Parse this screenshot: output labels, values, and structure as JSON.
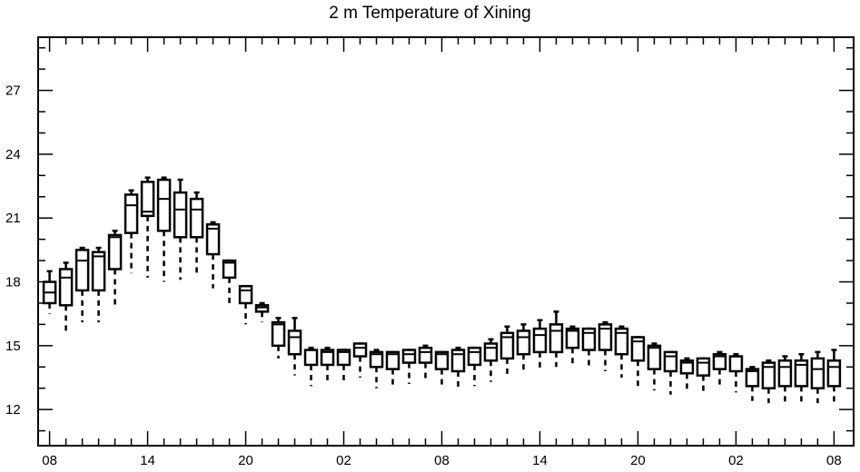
{
  "chart_data": {
    "type": "boxplot",
    "title": "2 m Temperature of Xining",
    "xlabel": "",
    "ylabel": "",
    "ylim": [
      10.3,
      29.5
    ],
    "yticks": [
      12,
      15,
      18,
      21,
      24,
      27
    ],
    "x_tick_labels": [
      "08",
      "14",
      "20",
      "02",
      "08",
      "14",
      "20",
      "02",
      "08"
    ],
    "x_tick_hours": [
      0,
      6,
      12,
      18,
      24,
      30,
      36,
      42,
      48
    ],
    "x_range_hours": [
      -0.7,
      49.2
    ],
    "grid": false,
    "legend": "none",
    "boxes": [
      {
        "hour": 0,
        "min": 16.5,
        "q1": 17.0,
        "median": 17.5,
        "q3": 18.0,
        "max": 18.5
      },
      {
        "hour": 1,
        "min": 15.6,
        "q1": 16.9,
        "median": 18.2,
        "q3": 18.6,
        "max": 18.9
      },
      {
        "hour": 2,
        "min": 16.1,
        "q1": 17.6,
        "median": 19.0,
        "q3": 19.5,
        "max": 19.6
      },
      {
        "hour": 3,
        "min": 16.1,
        "q1": 17.6,
        "median": 19.2,
        "q3": 19.4,
        "max": 19.6
      },
      {
        "hour": 4,
        "min": 16.8,
        "q1": 18.6,
        "median": 20.1,
        "q3": 20.2,
        "max": 20.4
      },
      {
        "hour": 5,
        "min": 18.4,
        "q1": 20.3,
        "median": 21.6,
        "q3": 22.1,
        "max": 22.3
      },
      {
        "hour": 6,
        "min": 18.2,
        "q1": 21.1,
        "median": 21.3,
        "q3": 22.7,
        "max": 22.9
      },
      {
        "hour": 7,
        "min": 18.0,
        "q1": 20.4,
        "median": 21.9,
        "q3": 22.8,
        "max": 22.9
      },
      {
        "hour": 8,
        "min": 18.1,
        "q1": 20.1,
        "median": 21.4,
        "q3": 22.2,
        "max": 22.8
      },
      {
        "hour": 9,
        "min": 18.3,
        "q1": 20.1,
        "median": 21.4,
        "q3": 21.9,
        "max": 22.2
      },
      {
        "hour": 10,
        "min": 17.7,
        "q1": 19.3,
        "median": 20.5,
        "q3": 20.7,
        "max": 20.8
      },
      {
        "hour": 11,
        "min": 17.0,
        "q1": 18.2,
        "median": 18.9,
        "q3": 19.0,
        "max": 19.0
      },
      {
        "hour": 12,
        "min": 16.0,
        "q1": 17.0,
        "median": 17.6,
        "q3": 17.8,
        "max": 17.8
      },
      {
        "hour": 13,
        "min": 16.1,
        "q1": 16.6,
        "median": 16.8,
        "q3": 16.9,
        "max": 17.0
      },
      {
        "hour": 14,
        "min": 14.4,
        "q1": 15.0,
        "median": 16.0,
        "q3": 16.1,
        "max": 16.3
      },
      {
        "hour": 15,
        "min": 13.6,
        "q1": 14.6,
        "median": 15.4,
        "q3": 15.7,
        "max": 16.3
      },
      {
        "hour": 16,
        "min": 13.1,
        "q1": 14.1,
        "median": 14.8,
        "q3": 14.8,
        "max": 14.9
      },
      {
        "hour": 17,
        "min": 13.2,
        "q1": 14.1,
        "median": 14.7,
        "q3": 14.8,
        "max": 14.9
      },
      {
        "hour": 18,
        "min": 13.3,
        "q1": 14.1,
        "median": 14.7,
        "q3": 14.8,
        "max": 14.8
      },
      {
        "hour": 19,
        "min": 13.5,
        "q1": 14.5,
        "median": 14.9,
        "q3": 15.1,
        "max": 15.1
      },
      {
        "hour": 20,
        "min": 13.0,
        "q1": 14.0,
        "median": 14.6,
        "q3": 14.7,
        "max": 14.8
      },
      {
        "hour": 21,
        "min": 13.0,
        "q1": 13.9,
        "median": 14.6,
        "q3": 14.7,
        "max": 14.7
      },
      {
        "hour": 22,
        "min": 13.2,
        "q1": 14.2,
        "median": 14.6,
        "q3": 14.8,
        "max": 14.8
      },
      {
        "hour": 23,
        "min": 13.4,
        "q1": 14.2,
        "median": 14.7,
        "q3": 14.9,
        "max": 15.0
      },
      {
        "hour": 24,
        "min": 13.1,
        "q1": 13.9,
        "median": 14.6,
        "q3": 14.7,
        "max": 14.7
      },
      {
        "hour": 25,
        "min": 13.0,
        "q1": 13.8,
        "median": 14.6,
        "q3": 14.8,
        "max": 14.9
      },
      {
        "hour": 26,
        "min": 13.1,
        "q1": 14.1,
        "median": 14.7,
        "q3": 14.9,
        "max": 14.9
      },
      {
        "hour": 27,
        "min": 13.3,
        "q1": 14.3,
        "median": 14.9,
        "q3": 15.1,
        "max": 15.3
      },
      {
        "hour": 28,
        "min": 13.5,
        "q1": 14.4,
        "median": 15.4,
        "q3": 15.6,
        "max": 15.9
      },
      {
        "hour": 29,
        "min": 13.7,
        "q1": 14.6,
        "median": 15.4,
        "q3": 15.7,
        "max": 16.0
      },
      {
        "hour": 30,
        "min": 13.8,
        "q1": 14.7,
        "median": 15.5,
        "q3": 15.8,
        "max": 16.2
      },
      {
        "hour": 31,
        "min": 14.0,
        "q1": 14.7,
        "median": 15.7,
        "q3": 16.0,
        "max": 16.6
      },
      {
        "hour": 32,
        "min": 14.1,
        "q1": 14.9,
        "median": 15.7,
        "q3": 15.8,
        "max": 15.9
      },
      {
        "hour": 33,
        "min": 14.0,
        "q1": 14.8,
        "median": 15.6,
        "q3": 15.8,
        "max": 15.8
      },
      {
        "hour": 34,
        "min": 13.8,
        "q1": 14.8,
        "median": 15.8,
        "q3": 16.0,
        "max": 16.1
      },
      {
        "hour": 35,
        "min": 13.5,
        "q1": 14.6,
        "median": 15.6,
        "q3": 15.8,
        "max": 15.9
      },
      {
        "hour": 36,
        "min": 13.1,
        "q1": 14.3,
        "median": 15.2,
        "q3": 15.4,
        "max": 15.4
      },
      {
        "hour": 37,
        "min": 12.9,
        "q1": 13.9,
        "median": 14.9,
        "q3": 15.0,
        "max": 15.1
      },
      {
        "hour": 38,
        "min": 12.7,
        "q1": 13.8,
        "median": 14.5,
        "q3": 14.7,
        "max": 14.7
      },
      {
        "hour": 39,
        "min": 12.9,
        "q1": 13.7,
        "median": 14.2,
        "q3": 14.3,
        "max": 14.4
      },
      {
        "hour": 40,
        "min": 12.8,
        "q1": 13.6,
        "median": 14.2,
        "q3": 14.4,
        "max": 14.4
      },
      {
        "hour": 41,
        "min": 13.0,
        "q1": 13.9,
        "median": 14.5,
        "q3": 14.6,
        "max": 14.7
      },
      {
        "hour": 42,
        "min": 12.8,
        "q1": 13.8,
        "median": 13.8,
        "q3": 14.5,
        "max": 14.6
      },
      {
        "hour": 43,
        "min": 12.4,
        "q1": 13.1,
        "median": 13.8,
        "q3": 13.9,
        "max": 14.0
      },
      {
        "hour": 44,
        "min": 12.3,
        "q1": 13.0,
        "median": 14.0,
        "q3": 14.2,
        "max": 14.3
      },
      {
        "hour": 45,
        "min": 12.3,
        "q1": 13.1,
        "median": 14.0,
        "q3": 14.3,
        "max": 14.5
      },
      {
        "hour": 46,
        "min": 12.3,
        "q1": 13.1,
        "median": 14.1,
        "q3": 14.3,
        "max": 14.6
      },
      {
        "hour": 47,
        "min": 12.3,
        "q1": 13.0,
        "median": 13.9,
        "q3": 14.4,
        "max": 14.7
      },
      {
        "hour": 48,
        "min": 12.3,
        "q1": 13.1,
        "median": 14.0,
        "q3": 14.3,
        "max": 14.8
      }
    ]
  }
}
